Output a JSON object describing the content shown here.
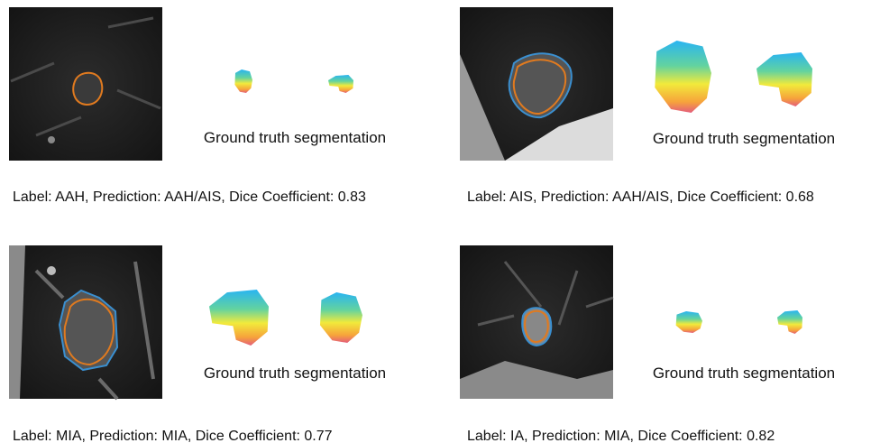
{
  "panels": [
    {
      "ground_truth_label": "Ground truth segmentation",
      "caption": "Label: AAH, Prediction: AAH/AIS, Dice Coefficient: 0.83"
    },
    {
      "ground_truth_label": "Ground truth segmentation",
      "caption": "Label: AIS, Prediction: AAH/AIS, Dice Coefficient: 0.68"
    },
    {
      "ground_truth_label": "Ground truth segmentation",
      "caption": "Label: MIA, Prediction: MIA, Dice Coefficient: 0.77"
    },
    {
      "ground_truth_label": "Ground truth segmentation",
      "caption": "Label: IA, Prediction: MIA, Dice Coefficient: 0.82"
    }
  ]
}
